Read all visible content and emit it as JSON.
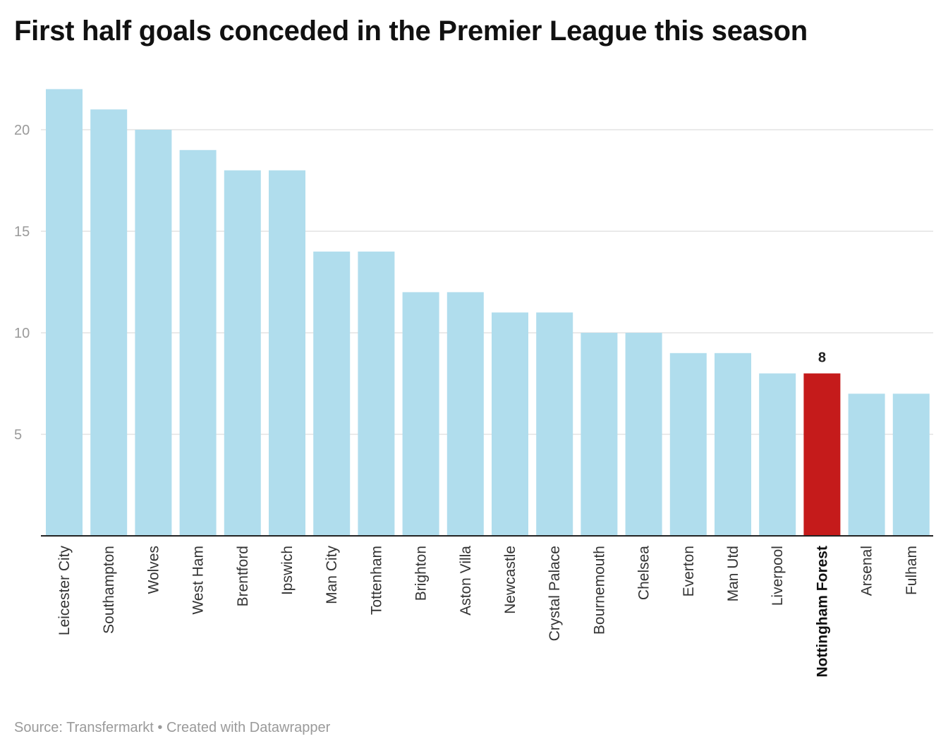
{
  "title": "First half goals conceded in the Premier League this season",
  "source": "Source: Transfermarkt • Created with Datawrapper",
  "colors": {
    "bar": "#b0dded",
    "highlight": "#c51b1b",
    "grid": "#e3e3e3",
    "axis": "#222222"
  },
  "chart_data": {
    "type": "bar",
    "title": "First half goals conceded in the Premier League this season",
    "xlabel": "",
    "ylabel": "",
    "ylim": [
      0,
      22
    ],
    "yticks": [
      5,
      10,
      15,
      20
    ],
    "grid": true,
    "legend": "none",
    "categories": [
      "Leicester City",
      "Southampton",
      "Wolves",
      "West Ham",
      "Brentford",
      "Ipswich",
      "Man City",
      "Tottenham",
      "Brighton",
      "Aston Villa",
      "Newcastle",
      "Crystal Palace",
      "Bournemouth",
      "Chelsea",
      "Everton",
      "Man Utd",
      "Liverpool",
      "Nottingham Forest",
      "Arsenal",
      "Fulham"
    ],
    "values": [
      22,
      21,
      20,
      19,
      18,
      18,
      14,
      14,
      12,
      12,
      11,
      11,
      10,
      10,
      9,
      9,
      8,
      8,
      7,
      7
    ],
    "highlight": "Nottingham Forest",
    "annotations": [
      {
        "category": "Nottingham Forest",
        "text": "8"
      }
    ]
  }
}
